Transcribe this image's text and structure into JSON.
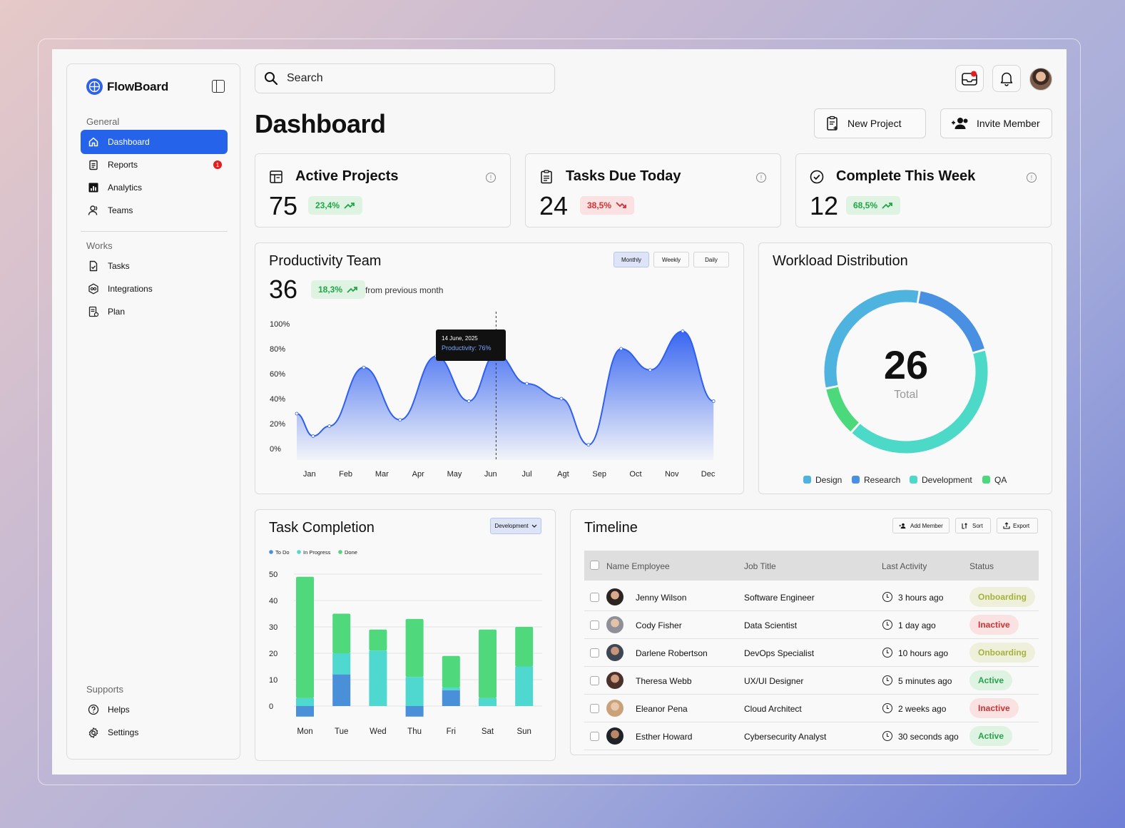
{
  "app": {
    "name": "FlowBoard"
  },
  "sidebar": {
    "general_label": "General",
    "general": [
      {
        "label": "Dashboard",
        "icon": "home-icon",
        "active": true
      },
      {
        "label": "Reports",
        "icon": "clipboard-icon",
        "badge": "1"
      },
      {
        "label": "Analytics",
        "icon": "bar-chart-icon"
      },
      {
        "label": "Teams",
        "icon": "users-icon"
      }
    ],
    "works_label": "Works",
    "works": [
      {
        "label": "Tasks",
        "icon": "task-check-icon"
      },
      {
        "label": "Integrations",
        "icon": "integrations-icon"
      },
      {
        "label": "Plan",
        "icon": "plan-icon"
      }
    ],
    "supports_label": "Supports",
    "supports": [
      {
        "label": "Helps",
        "icon": "help-icon"
      },
      {
        "label": "Settings",
        "icon": "gear-icon"
      }
    ]
  },
  "search": {
    "placeholder": "Search"
  },
  "page": {
    "title": "Dashboard",
    "new_project": "New Project",
    "invite_member": "Invite Member"
  },
  "stats": [
    {
      "title": "Active Projects",
      "value": "75",
      "change": "23,4%",
      "trend": "up",
      "icon": "kanban-icon"
    },
    {
      "title": "Tasks Due Today",
      "value": "24",
      "change": "38,5%",
      "trend": "down",
      "icon": "clipboard-list-icon"
    },
    {
      "title": "Complete This Week",
      "value": "12",
      "change": "68,5%",
      "trend": "up",
      "icon": "check-circle-icon"
    }
  ],
  "productivity": {
    "title": "Productivity Team",
    "value": "36",
    "change": "18,3%",
    "change_note": "from previous month",
    "tabs": [
      "Monthly",
      "Weekly",
      "Daily"
    ],
    "active_tab": "Monthly",
    "tooltip": {
      "date": "14 June, 2025",
      "text": "Productivity: 76%"
    }
  },
  "workload": {
    "title": "Workload Distribution",
    "total": "26",
    "total_label": "Total"
  },
  "task_completion": {
    "title": "Task Completion",
    "filter": "Development"
  },
  "timeline": {
    "title": "Timeline",
    "buttons": {
      "add_member": "Add Member",
      "sort": "Sort",
      "export": "Export"
    },
    "headers": {
      "name": "Name Employee",
      "job": "Job Title",
      "activity": "Last Activity",
      "status": "Status"
    },
    "rows": [
      {
        "name": "Jenny Wilson",
        "job": "Software Engineer",
        "activity": "3 hours ago",
        "status": "Onboarding"
      },
      {
        "name": "Cody Fisher",
        "job": "Data Scientist",
        "activity": "1 day ago",
        "status": "Inactive"
      },
      {
        "name": "Darlene Robertson",
        "job": "DevOps Specialist",
        "activity": "10 hours ago",
        "status": "Onboarding"
      },
      {
        "name": "Theresa Webb",
        "job": "UX/UI Designer",
        "activity": "5 minutes ago",
        "status": "Active"
      },
      {
        "name": "Eleanor Pena",
        "job": "Cloud Architect",
        "activity": "2 weeks ago",
        "status": "Inactive"
      },
      {
        "name": "Esther Howard",
        "job": "Cybersecurity Analyst",
        "activity": "30 seconds ago",
        "status": "Active"
      }
    ]
  },
  "colors": {
    "accent": "#2563eb",
    "design": "#4fb3e0",
    "research": "#4a90e2",
    "development": "#4cd9c8",
    "qa": "#4cd97b"
  },
  "chart_data": [
    {
      "type": "area",
      "x": [
        "Jan",
        "Feb",
        "Mar",
        "Apr",
        "May",
        "Jun",
        "Jul",
        "Agt",
        "Sep",
        "Oct",
        "Nov",
        "Dec"
      ],
      "points": [
        {
          "x": 0.0,
          "y": 28
        },
        {
          "x": 0.45,
          "y": 10
        },
        {
          "x": 0.9,
          "y": 18
        },
        {
          "x": 1.85,
          "y": 65
        },
        {
          "x": 2.85,
          "y": 23
        },
        {
          "x": 3.85,
          "y": 74
        },
        {
          "x": 4.75,
          "y": 38
        },
        {
          "x": 5.5,
          "y": 76
        },
        {
          "x": 6.35,
          "y": 52
        },
        {
          "x": 7.3,
          "y": 40
        },
        {
          "x": 8.05,
          "y": 3
        },
        {
          "x": 8.95,
          "y": 80
        },
        {
          "x": 9.75,
          "y": 63
        },
        {
          "x": 10.65,
          "y": 94
        },
        {
          "x": 11.5,
          "y": 38
        }
      ],
      "yticks": [
        "0%",
        "20%",
        "40%",
        "60%",
        "80%",
        "100%"
      ],
      "ylim": [
        0,
        100
      ]
    },
    {
      "type": "pie",
      "labels": [
        "Design",
        "Research",
        "Development",
        "QA"
      ],
      "values": [
        31,
        18,
        41,
        10
      ]
    },
    {
      "type": "bar",
      "stacked": true,
      "categories": [
        "Mon",
        "Tue",
        "Wed",
        "Thu",
        "Fri",
        "Sat",
        "Sun"
      ],
      "series": [
        {
          "name": "To Do",
          "values": [
            -4,
            12,
            0,
            -4,
            6,
            0,
            0
          ]
        },
        {
          "name": "In Progress",
          "values": [
            3,
            8,
            21,
            11,
            1,
            3,
            15
          ]
        },
        {
          "name": "Done",
          "values": [
            46,
            15,
            8,
            22,
            12,
            26,
            15
          ]
        }
      ],
      "yticks": [
        0,
        10,
        20,
        30,
        40,
        50
      ],
      "ylim": [
        -5,
        55
      ]
    }
  ]
}
